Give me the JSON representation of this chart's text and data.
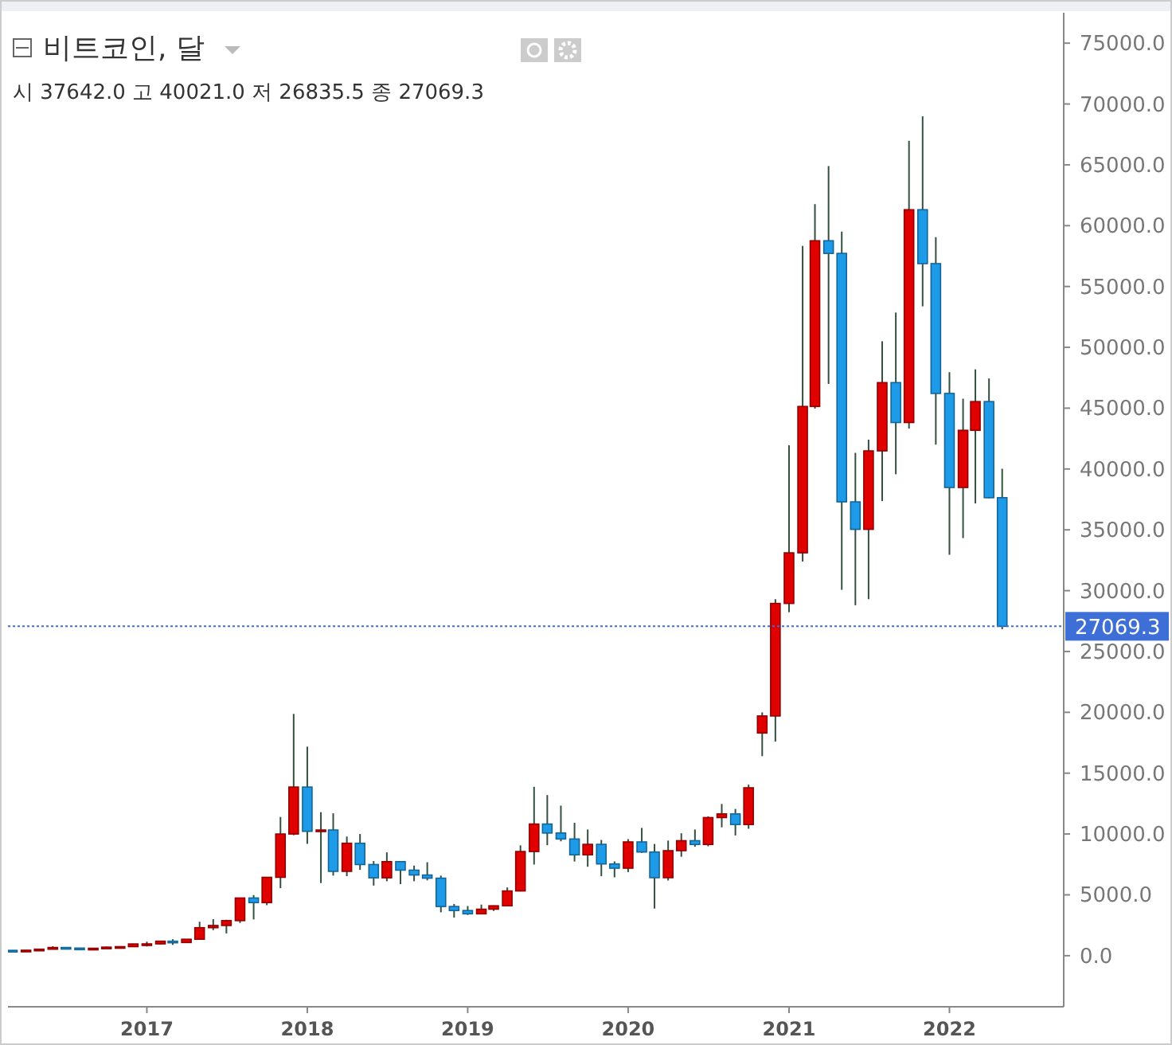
{
  "chart_data": {
    "type": "candlestick",
    "title": "비트코인, 달",
    "annotations": [
      "시 37642.0 고 40021.0 저 26835.5 종 27069.3"
    ],
    "x": [
      "2016-03",
      "2016-04",
      "2016-05",
      "2016-06",
      "2016-07",
      "2016-08",
      "2016-09",
      "2016-10",
      "2016-11",
      "2016-12",
      "2017-01",
      "2017-02",
      "2017-03",
      "2017-04",
      "2017-05",
      "2017-06",
      "2017-07",
      "2017-08",
      "2017-09",
      "2017-10",
      "2017-11",
      "2017-12",
      "2018-01",
      "2018-02",
      "2018-03",
      "2018-04",
      "2018-05",
      "2018-06",
      "2018-07",
      "2018-08",
      "2018-09",
      "2018-10",
      "2018-11",
      "2018-12",
      "2019-01",
      "2019-02",
      "2019-03",
      "2019-04",
      "2019-05",
      "2019-06",
      "2019-07",
      "2019-08",
      "2019-09",
      "2019-10",
      "2019-11",
      "2019-12",
      "2020-01",
      "2020-02",
      "2020-03",
      "2020-04",
      "2020-05",
      "2020-06",
      "2020-07",
      "2020-08",
      "2020-09",
      "2020-10",
      "2020-11",
      "2020-12",
      "2021-01",
      "2021-02",
      "2021-03",
      "2021-04",
      "2021-05",
      "2021-06",
      "2021-07",
      "2021-08",
      "2021-09",
      "2021-10",
      "2021-11",
      "2021-12",
      "2022-01",
      "2022-02",
      "2022-03",
      "2022-04",
      "2022-05"
    ],
    "ohlc": [
      [
        437,
        439,
        369,
        416
      ],
      [
        416,
        467,
        415,
        448
      ],
      [
        448,
        552,
        436,
        531
      ],
      [
        531,
        778,
        524,
        673
      ],
      [
        673,
        704,
        606,
        624
      ],
      [
        624,
        627,
        470,
        575
      ],
      [
        575,
        612,
        560,
        609
      ],
      [
        609,
        741,
        605,
        701
      ],
      [
        701,
        757,
        680,
        742
      ],
      [
        742,
        979,
        742,
        964
      ],
      [
        964,
        1150,
        750,
        970
      ],
      [
        970,
        1200,
        920,
        1190
      ],
      [
        1190,
        1350,
        890,
        1080
      ],
      [
        1080,
        1350,
        1080,
        1350
      ],
      [
        1350,
        2790,
        1350,
        2300
      ],
      [
        2300,
        3000,
        2100,
        2480
      ],
      [
        2480,
        2950,
        1830,
        2880
      ],
      [
        2880,
        4770,
        2690,
        4740
      ],
      [
        4740,
        4980,
        2980,
        4360
      ],
      [
        4360,
        6470,
        4150,
        6440
      ],
      [
        6440,
        11400,
        5550,
        10000
      ],
      [
        10000,
        19870,
        9900,
        13860
      ],
      [
        13860,
        17180,
        9190,
        10220
      ],
      [
        10220,
        11790,
        5970,
        10330
      ],
      [
        10330,
        11700,
        6580,
        6930
      ],
      [
        6930,
        9790,
        6530,
        9240
      ],
      [
        9240,
        10000,
        7050,
        7490
      ],
      [
        7490,
        7770,
        5760,
        6400
      ],
      [
        6400,
        8490,
        6120,
        7730
      ],
      [
        7730,
        7760,
        5880,
        7030
      ],
      [
        7030,
        7400,
        6120,
        6630
      ],
      [
        6630,
        7680,
        6190,
        6370
      ],
      [
        6370,
        6580,
        3560,
        4040
      ],
      [
        4040,
        4250,
        3130,
        3710
      ],
      [
        3710,
        4080,
        3350,
        3440
      ],
      [
        3440,
        4200,
        3400,
        3820
      ],
      [
        3820,
        4120,
        3680,
        4100
      ],
      [
        4100,
        5610,
        4080,
        5320
      ],
      [
        5320,
        9070,
        5280,
        8560
      ],
      [
        8560,
        13880,
        7490,
        10820
      ],
      [
        10820,
        13200,
        9080,
        10080
      ],
      [
        10080,
        12330,
        9400,
        9590
      ],
      [
        9590,
        10920,
        7740,
        8290
      ],
      [
        8290,
        10370,
        7310,
        9150
      ],
      [
        9150,
        9510,
        6530,
        7540
      ],
      [
        7540,
        7750,
        6440,
        7190
      ],
      [
        7190,
        9580,
        6870,
        9350
      ],
      [
        9350,
        10500,
        8450,
        8520
      ],
      [
        8520,
        9180,
        3870,
        6410
      ],
      [
        6410,
        9460,
        6180,
        8630
      ],
      [
        8630,
        10060,
        8130,
        9450
      ],
      [
        9450,
        10370,
        8950,
        9140
      ],
      [
        9140,
        11440,
        8990,
        11350
      ],
      [
        11350,
        12470,
        10550,
        11650
      ],
      [
        11650,
        12060,
        9880,
        10780
      ],
      [
        10780,
        14060,
        10430,
        13800
      ],
      [
        18300,
        20000,
        16400,
        19700
      ],
      [
        19700,
        29300,
        17600,
        28950
      ],
      [
        28950,
        41950,
        28230,
        33110
      ],
      [
        33110,
        58330,
        32390,
        45140
      ],
      [
        45140,
        61780,
        44960,
        58760
      ],
      [
        58760,
        64900,
        47000,
        57720
      ],
      [
        57720,
        59520,
        30070,
        37300
      ],
      [
        37300,
        41330,
        28800,
        35040
      ],
      [
        35040,
        42410,
        29300,
        41490
      ],
      [
        41490,
        50500,
        37360,
        47100
      ],
      [
        47100,
        52860,
        39570,
        43820
      ],
      [
        43820,
        66970,
        43320,
        61310
      ],
      [
        61310,
        68990,
        53370,
        56880
      ],
      [
        56880,
        59050,
        42000,
        46210
      ],
      [
        46210,
        47960,
        32950,
        38480
      ],
      [
        38480,
        45780,
        34320,
        43180
      ],
      [
        43180,
        48190,
        37170,
        45540
      ],
      [
        45540,
        47440,
        37600,
        37640
      ],
      [
        37642,
        40021,
        26835.5,
        27069.3
      ]
    ],
    "colors": [
      "#1e9be8",
      "#e00000",
      "#e00000",
      "#e00000",
      "#1e9be8",
      "#1e9be8",
      "#e00000",
      "#e00000",
      "#e00000",
      "#e00000",
      "#e00000",
      "#e00000",
      "#1e9be8",
      "#e00000",
      "#e00000",
      "#e00000",
      "#e00000",
      "#e00000",
      "#1e9be8",
      "#e00000",
      "#e00000",
      "#e00000",
      "#1e9be8",
      "#e00000",
      "#1e9be8",
      "#e00000",
      "#1e9be8",
      "#1e9be8",
      "#e00000",
      "#1e9be8",
      "#1e9be8",
      "#1e9be8",
      "#1e9be8",
      "#1e9be8",
      "#1e9be8",
      "#e00000",
      "#e00000",
      "#e00000",
      "#e00000",
      "#e00000",
      "#1e9be8",
      "#1e9be8",
      "#1e9be8",
      "#e00000",
      "#1e9be8",
      "#1e9be8",
      "#e00000",
      "#1e9be8",
      "#1e9be8",
      "#e00000",
      "#e00000",
      "#1e9be8",
      "#e00000",
      "#e00000",
      "#1e9be8",
      "#e00000",
      "#e00000",
      "#e00000",
      "#e00000",
      "#e00000",
      "#e00000",
      "#1e9be8",
      "#1e9be8",
      "#1e9be8",
      "#e00000",
      "#e00000",
      "#1e9be8",
      "#e00000",
      "#1e9be8",
      "#1e9be8",
      "#1e9be8",
      "#e00000",
      "#e00000",
      "#1e9be8",
      "#1e9be8"
    ],
    "xlim": [
      "2016-02-20",
      "2022-09-18"
    ],
    "xticks": [
      "2017",
      "2018",
      "2019",
      "2020",
      "2021",
      "2022"
    ],
    "ylim": [
      -4200,
      77500
    ],
    "yticks": [
      {
        "value": 0,
        "label": "0.0"
      },
      {
        "value": 5000,
        "label": "5000.0"
      },
      {
        "value": 10000,
        "label": "10000.0"
      },
      {
        "value": 15000,
        "label": "15000.0"
      },
      {
        "value": 20000,
        "label": "20000.0"
      },
      {
        "value": 25000,
        "label": "25000.0"
      },
      {
        "value": 30000,
        "label": "30000.0"
      },
      {
        "value": 35000,
        "label": "35000.0"
      },
      {
        "value": 40000,
        "label": "40000.0"
      },
      {
        "value": 45000,
        "label": "45000.0"
      },
      {
        "value": 50000,
        "label": "50000.0"
      },
      {
        "value": 55000,
        "label": "55000.0"
      },
      {
        "value": 60000,
        "label": "60000.0"
      },
      {
        "value": 65000,
        "label": "65000.0"
      },
      {
        "value": 70000,
        "label": "70000.0"
      },
      {
        "value": 75000,
        "label": "75000.0"
      }
    ],
    "ref_lines": [
      {
        "axis": "y",
        "value": 27069.3,
        "label": "27069.3",
        "color": "#3d6fd6",
        "line_style": "dotted"
      }
    ]
  }
}
